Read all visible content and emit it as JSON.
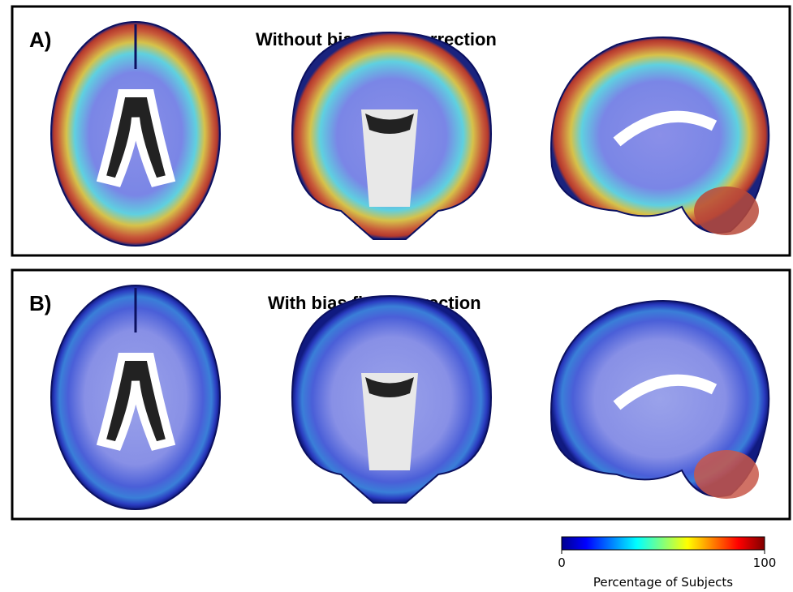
{
  "panels": [
    {
      "label": "A)",
      "title": "Without bias field correction"
    },
    {
      "label": "B)",
      "title": "With bias field correction"
    }
  ],
  "colorbar": {
    "lim": [
      0,
      100
    ],
    "ticks": [
      0,
      100
    ],
    "label": "Percentage of Subjects"
  }
}
